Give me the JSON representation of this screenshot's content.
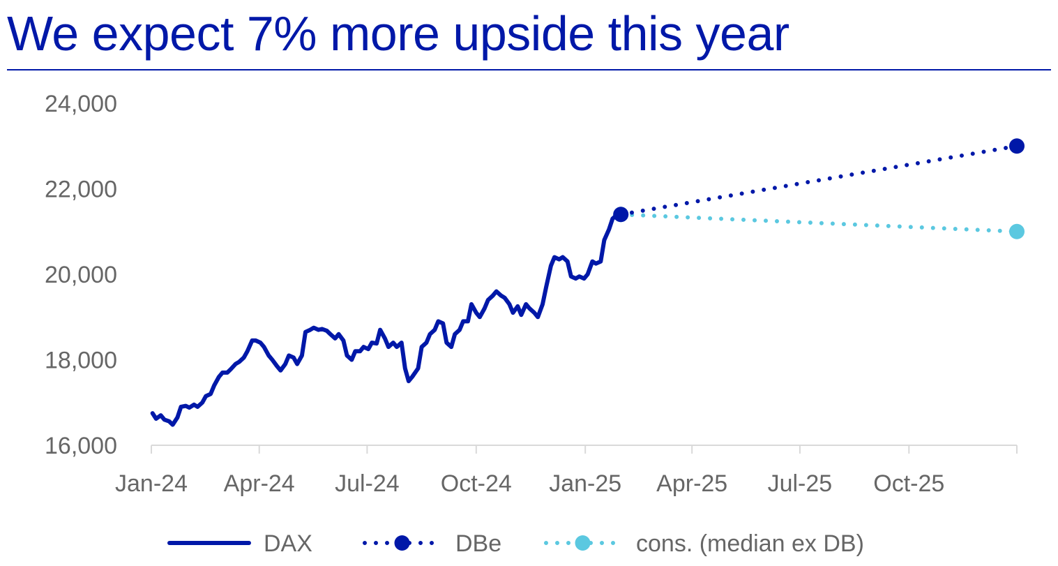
{
  "colors": {
    "title": "#0018A8",
    "rule": "#0018A8",
    "dax": "#0018A8",
    "dbe": "#0018A8",
    "consensus": "#5BC8E0",
    "axis": "#D9D9D9",
    "tick_text": "#666666"
  },
  "chart_data": {
    "type": "line",
    "title": "We expect 7% more upside this year",
    "xlabel": "",
    "ylabel": "",
    "ylim": [
      16000,
      24000
    ],
    "xlim": [
      "2024-01-01",
      "2025-12-31"
    ],
    "y_ticks": [
      "16,000",
      "18,000",
      "20,000",
      "22,000",
      "24,000"
    ],
    "y_tick_values": [
      16000,
      18000,
      20000,
      22000,
      24000
    ],
    "x_ticks": [
      "Jan-24",
      "Apr-24",
      "Jul-24",
      "Oct-24",
      "Jan-25",
      "Apr-25",
      "Jul-25",
      "Oct-25"
    ],
    "x_tick_dates": [
      "2024-01-01",
      "2024-04-01",
      "2024-07-01",
      "2024-10-01",
      "2025-01-01",
      "2025-04-01",
      "2025-07-01",
      "2025-10-01"
    ],
    "grid": false,
    "legend_placement": "bottom",
    "series": [
      {
        "name": "DAX",
        "style": "solid",
        "x": [
          "2024-01-02",
          "2024-01-05",
          "2024-01-09",
          "2024-01-12",
          "2024-01-16",
          "2024-01-19",
          "2024-01-23",
          "2024-01-26",
          "2024-01-30",
          "2024-02-02",
          "2024-02-06",
          "2024-02-09",
          "2024-02-13",
          "2024-02-16",
          "2024-02-20",
          "2024-02-23",
          "2024-02-27",
          "2024-03-01",
          "2024-03-05",
          "2024-03-08",
          "2024-03-12",
          "2024-03-15",
          "2024-03-19",
          "2024-03-22",
          "2024-03-26",
          "2024-03-29",
          "2024-04-02",
          "2024-04-05",
          "2024-04-09",
          "2024-04-12",
          "2024-04-16",
          "2024-04-19",
          "2024-04-23",
          "2024-04-26",
          "2024-04-30",
          "2024-05-03",
          "2024-05-07",
          "2024-05-10",
          "2024-05-14",
          "2024-05-17",
          "2024-05-21",
          "2024-05-24",
          "2024-05-28",
          "2024-05-31",
          "2024-06-04",
          "2024-06-07",
          "2024-06-11",
          "2024-06-14",
          "2024-06-18",
          "2024-06-21",
          "2024-06-25",
          "2024-06-28",
          "2024-07-02",
          "2024-07-05",
          "2024-07-09",
          "2024-07-12",
          "2024-07-16",
          "2024-07-19",
          "2024-07-23",
          "2024-07-26",
          "2024-07-30",
          "2024-08-02",
          "2024-08-05",
          "2024-08-08",
          "2024-08-13",
          "2024-08-16",
          "2024-08-20",
          "2024-08-23",
          "2024-08-27",
          "2024-08-30",
          "2024-09-03",
          "2024-09-06",
          "2024-09-10",
          "2024-09-13",
          "2024-09-17",
          "2024-09-20",
          "2024-09-24",
          "2024-09-27",
          "2024-10-01",
          "2024-10-04",
          "2024-10-08",
          "2024-10-11",
          "2024-10-15",
          "2024-10-18",
          "2024-10-22",
          "2024-10-25",
          "2024-10-29",
          "2024-11-01",
          "2024-11-05",
          "2024-11-08",
          "2024-11-12",
          "2024-11-15",
          "2024-11-19",
          "2024-11-22",
          "2024-11-26",
          "2024-11-29",
          "2024-12-03",
          "2024-12-06",
          "2024-12-10",
          "2024-12-13",
          "2024-12-17",
          "2024-12-20",
          "2024-12-24",
          "2024-12-27",
          "2024-12-31",
          "2025-01-03",
          "2025-01-07",
          "2025-01-10",
          "2025-01-14",
          "2025-01-17",
          "2025-01-21",
          "2025-01-24",
          "2025-01-28",
          "2025-01-31"
        ],
        "y": [
          16750,
          16620,
          16700,
          16600,
          16560,
          16480,
          16650,
          16900,
          16920,
          16880,
          16950,
          16900,
          17000,
          17150,
          17200,
          17400,
          17600,
          17700,
          17700,
          17780,
          17900,
          17950,
          18050,
          18200,
          18450,
          18450,
          18400,
          18300,
          18100,
          18000,
          17850,
          17750,
          17900,
          18100,
          18050,
          17900,
          18100,
          18650,
          18700,
          18750,
          18700,
          18720,
          18680,
          18600,
          18500,
          18600,
          18450,
          18100,
          18000,
          18200,
          18200,
          18300,
          18250,
          18400,
          18380,
          18700,
          18500,
          18300,
          18400,
          18300,
          18400,
          17800,
          17500,
          17600,
          17800,
          18300,
          18400,
          18600,
          18700,
          18900,
          18850,
          18400,
          18300,
          18600,
          18700,
          18900,
          18900,
          19300,
          19100,
          19000,
          19200,
          19400,
          19500,
          19600,
          19500,
          19450,
          19300,
          19100,
          19250,
          19050,
          19300,
          19200,
          19100,
          19000,
          19300,
          19700,
          20200,
          20400,
          20350,
          20400,
          20300,
          19950,
          19900,
          19950,
          19900,
          20000,
          20300,
          20250,
          20300,
          20800,
          21050,
          21300,
          21400,
          21400
        ]
      },
      {
        "name": "DBe",
        "style": "dotted",
        "marker": "circle",
        "x": [
          "2025-01-31",
          "2025-12-31"
        ],
        "y": [
          21400,
          23000
        ]
      },
      {
        "name": "cons. (median ex DB)",
        "style": "dotted",
        "marker": "circle",
        "x": [
          "2025-01-31",
          "2025-12-31"
        ],
        "y": [
          21400,
          21000
        ]
      }
    ]
  }
}
